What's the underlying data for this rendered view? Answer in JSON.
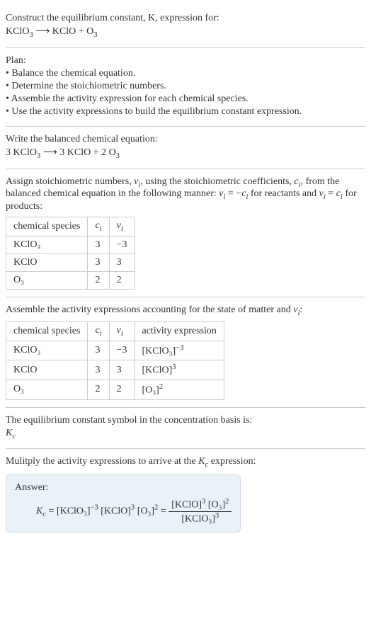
{
  "header": {
    "prompt": "Construct the equilibrium constant, K, expression for:",
    "unbalanced_lhs": "KClO",
    "unbalanced_lhs_sub": "3",
    "arrow": " ⟶ ",
    "unbalanced_rhs1": "KClO + O",
    "unbalanced_rhs1_sub": "3"
  },
  "plan": {
    "title": "Plan:",
    "items": [
      "• Balance the chemical equation.",
      "• Determine the stoichiometric numbers.",
      "• Assemble the activity expression for each chemical species.",
      "• Use the activity expressions to build the equilibrium constant expression."
    ]
  },
  "balanced": {
    "label": "Write the balanced chemical equation:",
    "c1": "3 KClO",
    "c1_sub": "3",
    "arrow": " ⟶ ",
    "c2": "3 KClO + 2 O",
    "c2_sub": "3"
  },
  "stoich": {
    "text1": "Assign stoichiometric numbers, ",
    "nu": "ν",
    "sub_i": "i",
    "text2": ", using the stoichiometric coefficients, ",
    "c": "c",
    "text3": ", from the balanced chemical equation in the following manner: ",
    "eq1": " = −",
    "text4": " for reactants and ",
    "eq2": " = ",
    "text5": " for products:",
    "table": {
      "headers": [
        "chemical species",
        "cᵢ",
        "νᵢ"
      ],
      "rows": [
        [
          "KClO₃",
          "3",
          "−3"
        ],
        [
          "KClO",
          "3",
          "3"
        ],
        [
          "O₃",
          "2",
          "2"
        ]
      ]
    }
  },
  "activity": {
    "text": "Assemble the activity expressions accounting for the state of matter and νᵢ:",
    "table": {
      "headers": [
        "chemical species",
        "cᵢ",
        "νᵢ",
        "activity expression"
      ],
      "rows": [
        {
          "sp": "KClO₃",
          "c": "3",
          "nu": "−3",
          "act_base": "[KClO₃]",
          "act_exp": "−3"
        },
        {
          "sp": "KClO",
          "c": "3",
          "nu": "3",
          "act_base": "[KClO]",
          "act_exp": "3"
        },
        {
          "sp": "O₃",
          "c": "2",
          "nu": "2",
          "act_base": "[O₃]",
          "act_exp": "2"
        }
      ]
    }
  },
  "symbol": {
    "text": "The equilibrium constant symbol in the concentration basis is:",
    "K": "K",
    "sub": "c"
  },
  "multiply": {
    "text1": "Mulitply the activity expressions to arrive at the ",
    "K": "K",
    "sub": "c",
    "text2": " expression:"
  },
  "answer": {
    "label": "Answer:",
    "Kc": "K",
    "Kc_sub": "c",
    "eq": " = ",
    "t1_base": "[KClO₃]",
    "t1_exp": "−3",
    "t2_base": "[KClO]",
    "t2_exp": "3",
    "t3_base": "[O₃]",
    "t3_exp": "2",
    "eq2": " = ",
    "num1_base": "[KClO]",
    "num1_exp": "3",
    "num2_base": "[O₃]",
    "num2_exp": "2",
    "den_base": "[KClO₃]",
    "den_exp": "3"
  }
}
